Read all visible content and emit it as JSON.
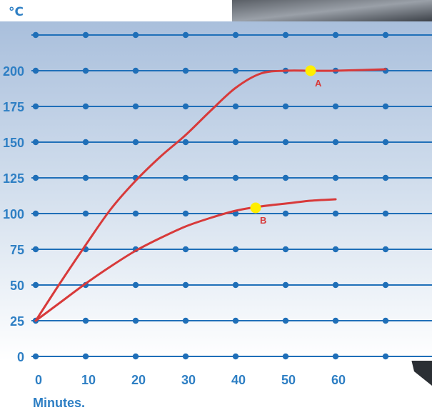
{
  "chart_data": {
    "type": "line",
    "unit_label": "°C",
    "xlabel": "Minutes.",
    "x_ticks": [
      "0",
      "10",
      "20",
      "30",
      "40",
      "50",
      "60"
    ],
    "y_ticks": [
      "0",
      "25",
      "50",
      "75",
      "100",
      "125",
      "150",
      "175",
      "200"
    ],
    "xlim": [
      0,
      70
    ],
    "ylim": [
      0,
      225
    ],
    "grid": true,
    "series": [
      {
        "name": "A",
        "color": "#d83a3a",
        "x": [
          0,
          5,
          10,
          15,
          20,
          25,
          30,
          35,
          40,
          45,
          50,
          55,
          60,
          70
        ],
        "y": [
          25,
          52,
          78,
          103,
          123,
          140,
          155,
          172,
          188,
          198,
          200,
          200,
          200,
          201
        ]
      },
      {
        "name": "B",
        "color": "#d83a3a",
        "x": [
          0,
          5,
          10,
          15,
          20,
          25,
          30,
          35,
          40,
          45,
          50,
          55,
          60
        ],
        "y": [
          25,
          38,
          51,
          63,
          74,
          83,
          91,
          97,
          102,
          105,
          107,
          109,
          110
        ]
      }
    ],
    "markers": [
      {
        "label": "A",
        "x": 55,
        "y": 200,
        "color": "#ffee00"
      },
      {
        "label": "B",
        "x": 44,
        "y": 104,
        "color": "#ffee00"
      }
    ],
    "colors": {
      "grid": "#1f6fb8",
      "tick_text": "#2e7fc4",
      "plot_bg_top": "#a9bfdc",
      "plot_bg_bottom": "#ffffff"
    }
  }
}
